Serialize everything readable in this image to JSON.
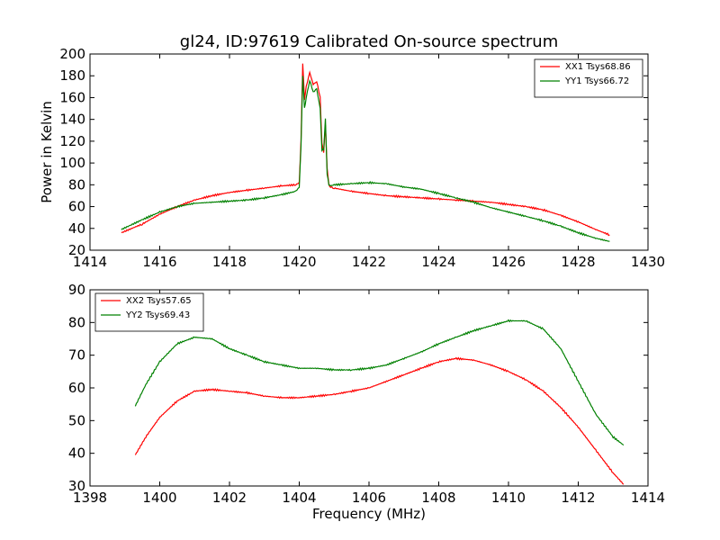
{
  "figure": {
    "title": "gl24, ID:97619 Calibrated On-source spectrum",
    "xlabel": "Frequency (MHz)",
    "ylabel": "Power in Kelvin"
  },
  "chart_data": [
    {
      "type": "line",
      "title": "gl24, ID:97619 Calibrated On-source spectrum",
      "xlabel": "",
      "ylabel": "Power in Kelvin",
      "xlim": [
        1414,
        1430
      ],
      "ylim": [
        20,
        200
      ],
      "xticks": [
        "1414",
        "1416",
        "1418",
        "1420",
        "1422",
        "1424",
        "1426",
        "1428",
        "1430"
      ],
      "yticks": [
        "20",
        "40",
        "60",
        "80",
        "100",
        "120",
        "140",
        "160",
        "180",
        "200"
      ],
      "grid": false,
      "legend": "top-right",
      "series": [
        {
          "name": "XX1 Tsys68.86",
          "color": "#ff0000",
          "x": [
            1414.9,
            1415.5,
            1416.0,
            1416.5,
            1417.0,
            1417.5,
            1418.0,
            1418.5,
            1419.0,
            1419.5,
            1419.9,
            1420.0,
            1420.05,
            1420.1,
            1420.15,
            1420.2,
            1420.3,
            1420.4,
            1420.5,
            1420.6,
            1420.65,
            1420.7,
            1420.75,
            1420.8,
            1420.85,
            1420.9,
            1421.0,
            1421.5,
            1422.0,
            1422.5,
            1423.0,
            1423.5,
            1424.0,
            1424.5,
            1425.0,
            1425.5,
            1426.0,
            1426.5,
            1427.0,
            1427.5,
            1428.0,
            1428.5,
            1428.9
          ],
          "y": [
            36,
            44,
            53,
            60,
            66,
            70,
            73,
            75,
            77,
            79,
            80,
            82,
            120,
            192,
            158,
            170,
            183,
            172,
            175,
            160,
            118,
            110,
            135,
            95,
            80,
            78,
            77,
            74,
            72,
            70,
            69,
            68,
            67,
            66,
            65,
            64,
            62,
            60,
            57,
            52,
            46,
            39,
            34
          ]
        },
        {
          "name": "YY1 Tsys66.72",
          "color": "#008000",
          "x": [
            1414.9,
            1415.5,
            1416.0,
            1416.5,
            1417.0,
            1417.5,
            1418.0,
            1418.5,
            1419.0,
            1419.5,
            1419.9,
            1420.0,
            1420.05,
            1420.1,
            1420.15,
            1420.2,
            1420.3,
            1420.4,
            1420.5,
            1420.6,
            1420.65,
            1420.7,
            1420.75,
            1420.8,
            1420.85,
            1420.9,
            1421.0,
            1421.5,
            1422.0,
            1422.5,
            1423.0,
            1423.5,
            1424.0,
            1424.5,
            1425.0,
            1425.5,
            1426.0,
            1426.5,
            1427.0,
            1427.5,
            1428.0,
            1428.5,
            1428.9
          ],
          "y": [
            39,
            48,
            55,
            60,
            63,
            64,
            65,
            66,
            68,
            71,
            74,
            78,
            115,
            180,
            150,
            160,
            176,
            165,
            168,
            150,
            112,
            112,
            140,
            90,
            80,
            79,
            80,
            81,
            82,
            81,
            78,
            76,
            72,
            68,
            64,
            59,
            55,
            51,
            47,
            42,
            36,
            31,
            28
          ]
        }
      ]
    },
    {
      "type": "line",
      "title": "",
      "xlabel": "Frequency (MHz)",
      "ylabel": "",
      "xlim": [
        1398,
        1414
      ],
      "ylim": [
        30,
        90
      ],
      "xticks": [
        "1398",
        "1400",
        "1402",
        "1404",
        "1406",
        "1408",
        "1410",
        "1412",
        "1414"
      ],
      "yticks": [
        "30",
        "40",
        "50",
        "60",
        "70",
        "80",
        "90"
      ],
      "grid": false,
      "legend": "top-left",
      "series": [
        {
          "name": "XX2 Tsys57.65",
          "color": "#ff0000",
          "x": [
            1399.3,
            1399.6,
            1400.0,
            1400.5,
            1401.0,
            1401.5,
            1402.0,
            1402.5,
            1403.0,
            1403.5,
            1404.0,
            1404.5,
            1405.0,
            1405.5,
            1406.0,
            1406.5,
            1407.0,
            1407.5,
            1408.0,
            1408.5,
            1409.0,
            1409.5,
            1410.0,
            1410.5,
            1411.0,
            1411.5,
            1412.0,
            1412.5,
            1413.0,
            1413.3
          ],
          "y": [
            39.5,
            45,
            51,
            56,
            59,
            59.5,
            59,
            58.5,
            57.5,
            57,
            57,
            57.5,
            58,
            59,
            60,
            62,
            64,
            66,
            68,
            69,
            68.5,
            67,
            65,
            62.5,
            59,
            54,
            48,
            41,
            34,
            30.5
          ]
        },
        {
          "name": "YY2 Tsys69.43",
          "color": "#008000",
          "x": [
            1399.3,
            1399.6,
            1400.0,
            1400.5,
            1401.0,
            1401.5,
            1402.0,
            1402.5,
            1403.0,
            1403.5,
            1404.0,
            1404.5,
            1405.0,
            1405.5,
            1406.0,
            1406.5,
            1407.0,
            1407.5,
            1408.0,
            1408.5,
            1409.0,
            1409.5,
            1410.0,
            1410.5,
            1411.0,
            1411.5,
            1412.0,
            1412.5,
            1413.0,
            1413.3
          ],
          "y": [
            54.5,
            61,
            68,
            73.5,
            75.5,
            75,
            72,
            70,
            68,
            67,
            66,
            66,
            65.5,
            65.5,
            66,
            67,
            69,
            71,
            73.5,
            75.5,
            77.5,
            79,
            80.5,
            80.5,
            78,
            72,
            62,
            52,
            45,
            42.5
          ]
        }
      ]
    }
  ]
}
